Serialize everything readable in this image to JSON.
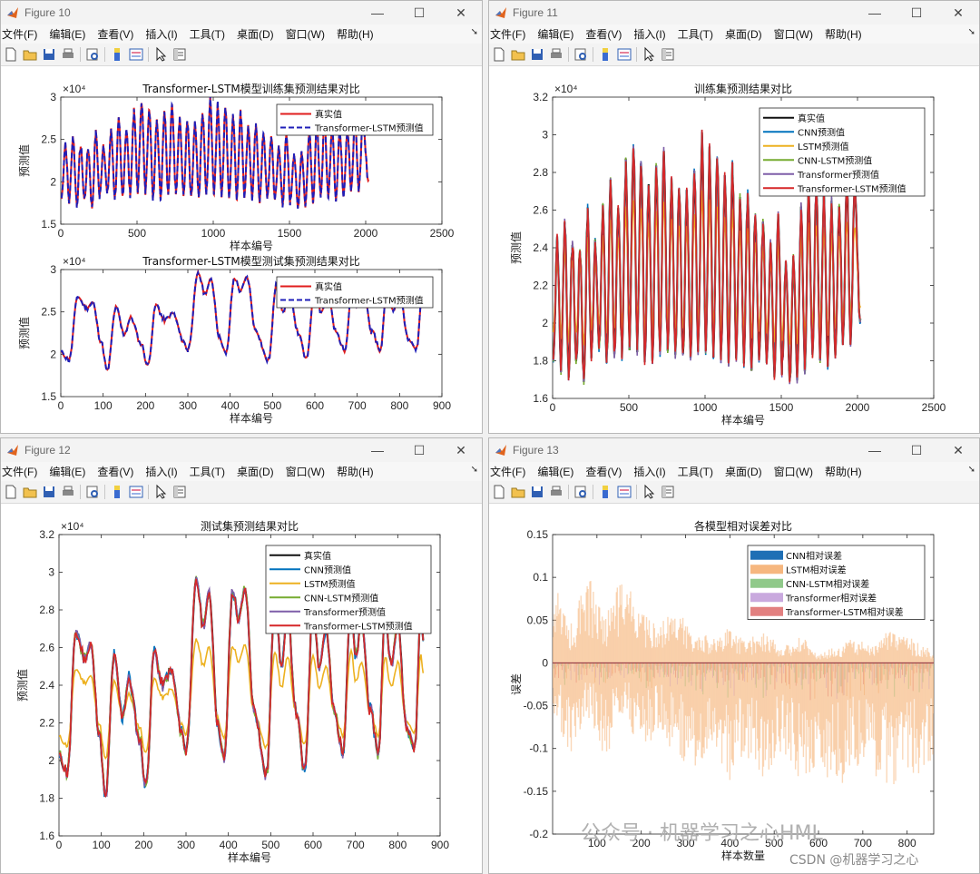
{
  "menu_items": [
    "文件(F)",
    "编辑(E)",
    "查看(V)",
    "插入(I)",
    "工具(T)",
    "桌面(D)",
    "窗口(W)",
    "帮助(H)"
  ],
  "window_controls": {
    "minimize": "—",
    "maximize": "☐",
    "close": "✕"
  },
  "toolbar_icons": [
    "new-file-icon",
    "open-folder-icon",
    "save-icon",
    "print-icon",
    "print-preview-icon",
    "colorbar-icon",
    "legend-icon",
    "pointer-icon",
    "property-inspector-icon"
  ],
  "colors": {
    "real": "#111111",
    "cnn": "#0072bd",
    "lstm": "#edb120",
    "cnn_lstm": "#77ac30",
    "transformer": "#7e5ea8",
    "tf_lstm": "#d62728",
    "pred_dashed": "#1f1fb8"
  },
  "windows": [
    {
      "title": "Figure 10"
    },
    {
      "title": "Figure 11"
    },
    {
      "title": "Figure 12"
    },
    {
      "title": "Figure 13"
    }
  ],
  "watermark": {
    "main": "公众号 · 机器学习之心HML",
    "csdn": "CSDN @机器学习之心"
  },
  "chart_data": [
    {
      "type": "line",
      "window": "Figure 10",
      "title": "Transformer-LSTM模型训练集预测结果对比",
      "xlabel": "样本编号",
      "ylabel": "预测值",
      "exponent": "×10⁴",
      "xlim": [
        0,
        2500
      ],
      "ylim": [
        15000,
        30000
      ],
      "xticks": [
        0,
        500,
        1000,
        1500,
        2000,
        2500
      ],
      "xtick_labels": [
        "0",
        "500",
        "1000",
        "1500",
        "2000",
        "2500"
      ],
      "yticks": [
        15000,
        20000,
        25000,
        30000
      ],
      "ytick_labels": [
        "1.5",
        "2",
        "2.5",
        "3"
      ],
      "legend": [
        "真实值",
        "Transformer-LSTM预测值"
      ],
      "legend_position": "top-right",
      "series_key": "train",
      "x_max": 2020
    },
    {
      "type": "line",
      "window": "Figure 10",
      "title": "Transformer-LSTM模型测试集预测结果对比",
      "xlabel": "样本编号",
      "ylabel": "预测值",
      "exponent": "×10⁴",
      "xlim": [
        0,
        900
      ],
      "ylim": [
        15000,
        30000
      ],
      "xticks": [
        0,
        100,
        200,
        300,
        400,
        500,
        600,
        700,
        800,
        900
      ],
      "xtick_labels": [
        "0",
        "100",
        "200",
        "300",
        "400",
        "500",
        "600",
        "700",
        "800",
        "900"
      ],
      "yticks": [
        15000,
        20000,
        25000,
        30000
      ],
      "ytick_labels": [
        "1.5",
        "2",
        "2.5",
        "3"
      ],
      "legend": [
        "真实值",
        "Transformer-LSTM预测值"
      ],
      "legend_position": "top-right",
      "series_key": "test",
      "x_max": 860
    },
    {
      "type": "line",
      "window": "Figure 11",
      "title": "训练集预测结果对比",
      "xlabel": "样本编号",
      "ylabel": "预测值",
      "exponent": "×10⁴",
      "xlim": [
        0,
        2500
      ],
      "ylim": [
        16000,
        32000
      ],
      "xticks": [
        0,
        500,
        1000,
        1500,
        2000,
        2500
      ],
      "xtick_labels": [
        "0",
        "500",
        "1000",
        "1500",
        "2000",
        "2500"
      ],
      "yticks": [
        16000,
        18000,
        20000,
        22000,
        24000,
        26000,
        28000,
        30000,
        32000
      ],
      "ytick_labels": [
        "1.6",
        "1.8",
        "2",
        "2.2",
        "2.4",
        "2.6",
        "2.8",
        "3",
        "3.2"
      ],
      "legend": [
        "真实值",
        "CNN预测值",
        "LSTM预测值",
        "CNN-LSTM预测值",
        "Transformer预测值",
        "Transformer-LSTM预测值"
      ],
      "legend_position": "top-right",
      "series_key": "train",
      "x_max": 2020
    },
    {
      "type": "line",
      "window": "Figure 12",
      "title": "测试集预测结果对比",
      "xlabel": "样本编号",
      "ylabel": "预测值",
      "exponent": "×10⁴",
      "xlim": [
        0,
        900
      ],
      "ylim": [
        16000,
        32000
      ],
      "xticks": [
        0,
        100,
        200,
        300,
        400,
        500,
        600,
        700,
        800,
        900
      ],
      "xtick_labels": [
        "0",
        "100",
        "200",
        "300",
        "400",
        "500",
        "600",
        "700",
        "800",
        "900"
      ],
      "yticks": [
        16000,
        18000,
        20000,
        22000,
        24000,
        26000,
        28000,
        30000,
        32000
      ],
      "ytick_labels": [
        "1.6",
        "1.8",
        "2",
        "2.2",
        "2.4",
        "2.6",
        "2.8",
        "3",
        "3.2"
      ],
      "legend": [
        "真实值",
        "CNN预测值",
        "LSTM预测值",
        "CNN-LSTM预测值",
        "Transformer预测值",
        "Transformer-LSTM预测值"
      ],
      "legend_position": "top-right",
      "series_key": "test",
      "x_max": 860
    },
    {
      "type": "bar",
      "window": "Figure 13",
      "title": "各模型相对误差对比",
      "xlabel": "样本数量",
      "ylabel": "误差",
      "xlim": [
        0,
        860
      ],
      "ylim": [
        -0.2,
        0.15
      ],
      "xticks": [
        100,
        200,
        300,
        400,
        500,
        600,
        700,
        800
      ],
      "xtick_labels": [
        "100",
        "200",
        "300",
        "400",
        "500",
        "600",
        "700",
        "800"
      ],
      "yticks": [
        -0.2,
        -0.15,
        -0.1,
        -0.05,
        0,
        0.05,
        0.1,
        0.15
      ],
      "ytick_labels": [
        "-0.2",
        "-0.15",
        "-0.1",
        "-0.05",
        "0",
        "0.05",
        "0.1",
        "0.15"
      ],
      "legend": [
        "CNN相对误差",
        "LSTM相对误差",
        "CNN-LSTM相对误差",
        "Transformer相对误差",
        "Transformer-LSTM相对误差"
      ],
      "legend_position": "top-right",
      "series_key": "error",
      "x_max": 860
    }
  ],
  "series_data": {
    "train_peaks": [
      [
        30,
        24600
      ],
      [
        80,
        25400
      ],
      [
        130,
        24200
      ],
      [
        180,
        23900
      ],
      [
        230,
        25800
      ],
      [
        280,
        24500
      ],
      [
        330,
        26000
      ],
      [
        380,
        27200
      ],
      [
        430,
        26200
      ],
      [
        480,
        28300
      ],
      [
        530,
        29600
      ],
      [
        580,
        28900
      ],
      [
        630,
        27500
      ],
      [
        680,
        28500
      ],
      [
        730,
        29000
      ],
      [
        780,
        27600
      ],
      [
        830,
        27000
      ],
      [
        880,
        26700
      ],
      [
        930,
        28000
      ],
      [
        980,
        29700
      ],
      [
        1030,
        29000
      ],
      [
        1080,
        28700
      ],
      [
        1130,
        27900
      ],
      [
        1180,
        28200
      ],
      [
        1230,
        26700
      ],
      [
        1280,
        26500
      ],
      [
        1330,
        25800
      ],
      [
        1380,
        25200
      ],
      [
        1430,
        24000
      ],
      [
        1480,
        25400
      ],
      [
        1530,
        23400
      ],
      [
        1580,
        23600
      ],
      [
        1630,
        26200
      ],
      [
        1680,
        27000
      ],
      [
        1730,
        27300
      ],
      [
        1780,
        26800
      ],
      [
        1830,
        26100
      ],
      [
        1880,
        26300
      ],
      [
        1930,
        27500
      ],
      [
        1980,
        27000
      ]
    ],
    "train_troughs": [
      [
        5,
        18000
      ],
      [
        55,
        17600
      ],
      [
        105,
        17400
      ],
      [
        155,
        17900
      ],
      [
        205,
        17000
      ],
      [
        255,
        18200
      ],
      [
        305,
        18500
      ],
      [
        355,
        18100
      ],
      [
        405,
        18300
      ],
      [
        455,
        18600
      ],
      [
        505,
        18900
      ],
      [
        555,
        18700
      ],
      [
        605,
        18200
      ],
      [
        655,
        18300
      ],
      [
        705,
        18500
      ],
      [
        755,
        18900
      ],
      [
        805,
        18300
      ],
      [
        855,
        18000
      ],
      [
        905,
        18200
      ],
      [
        955,
        18500
      ],
      [
        1005,
        18800
      ],
      [
        1055,
        18400
      ],
      [
        1105,
        18100
      ],
      [
        1155,
        18300
      ],
      [
        1205,
        18500
      ],
      [
        1255,
        18100
      ],
      [
        1305,
        17800
      ],
      [
        1355,
        17900
      ],
      [
        1405,
        18000
      ],
      [
        1455,
        17500
      ],
      [
        1505,
        17600
      ],
      [
        1555,
        16900
      ],
      [
        1605,
        17200
      ],
      [
        1655,
        17800
      ],
      [
        1705,
        18000
      ],
      [
        1755,
        18200
      ],
      [
        1805,
        18100
      ],
      [
        1855,
        18600
      ],
      [
        1905,
        18800
      ],
      [
        1955,
        18900
      ],
      [
        2020,
        20000
      ]
    ],
    "test_points": [
      [
        0,
        20200
      ],
      [
        20,
        19400
      ],
      [
        40,
        26800
      ],
      [
        60,
        25500
      ],
      [
        75,
        26100
      ],
      [
        95,
        21500
      ],
      [
        110,
        18000
      ],
      [
        130,
        25500
      ],
      [
        150,
        22400
      ],
      [
        165,
        24300
      ],
      [
        190,
        21200
      ],
      [
        205,
        18600
      ],
      [
        225,
        25800
      ],
      [
        245,
        24000
      ],
      [
        265,
        24800
      ],
      [
        290,
        21500
      ],
      [
        300,
        20500
      ],
      [
        325,
        29600
      ],
      [
        340,
        27200
      ],
      [
        355,
        28800
      ],
      [
        375,
        22000
      ],
      [
        390,
        20000
      ],
      [
        410,
        29000
      ],
      [
        425,
        27500
      ],
      [
        440,
        29100
      ],
      [
        460,
        22800
      ],
      [
        490,
        19200
      ],
      [
        510,
        28600
      ],
      [
        525,
        25000
      ],
      [
        540,
        27800
      ],
      [
        560,
        22600
      ],
      [
        580,
        19400
      ],
      [
        600,
        28200
      ],
      [
        615,
        25000
      ],
      [
        630,
        27000
      ],
      [
        650,
        22600
      ],
      [
        670,
        20500
      ],
      [
        690,
        28600
      ],
      [
        700,
        25500
      ],
      [
        715,
        27300
      ],
      [
        735,
        22600
      ],
      [
        755,
        20400
      ],
      [
        770,
        28000
      ],
      [
        785,
        25000
      ],
      [
        800,
        27400
      ],
      [
        820,
        22000
      ],
      [
        840,
        20600
      ],
      [
        855,
        28200
      ],
      [
        860,
        26400
      ]
    ],
    "error_envelope": [
      [
        0,
        0.09,
        -0.06
      ],
      [
        40,
        0.05,
        -0.11
      ],
      [
        80,
        0.1,
        -0.07
      ],
      [
        120,
        0.06,
        -0.11
      ],
      [
        160,
        0.1,
        -0.06
      ],
      [
        200,
        0.06,
        -0.11
      ],
      [
        240,
        0.05,
        -0.08
      ],
      [
        280,
        0.06,
        -0.11
      ],
      [
        320,
        0.04,
        -0.13
      ],
      [
        360,
        0.03,
        -0.1
      ],
      [
        400,
        0.04,
        -0.14
      ],
      [
        440,
        0.03,
        -0.12
      ],
      [
        480,
        0.04,
        -0.14
      ],
      [
        520,
        0.02,
        -0.11
      ],
      [
        560,
        0.03,
        -0.14
      ],
      [
        600,
        0.01,
        -0.12
      ],
      [
        640,
        0.02,
        -0.15
      ],
      [
        680,
        0.03,
        -0.12
      ],
      [
        720,
        0.02,
        -0.14
      ],
      [
        760,
        0.04,
        -0.15
      ],
      [
        800,
        0.03,
        -0.13
      ],
      [
        840,
        0.02,
        -0.14
      ],
      [
        860,
        0.01,
        -0.12
      ]
    ]
  }
}
